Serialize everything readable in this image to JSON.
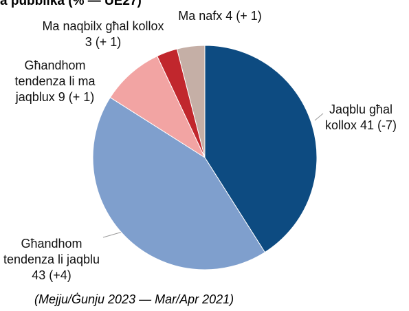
{
  "chart_data": {
    "type": "pie",
    "title": "a pubblika (% — UE27)",
    "subtitle": "(Mejju/Ġunju 2023 — Mar/Apr 2021)",
    "categories": [
      "Jaqblu għal kollox",
      "Għandhom tendenza li jaqblu",
      "Għandhom tendenza li ma jaqblux",
      "Ma naqbilx għal kollox",
      "Ma nafx"
    ],
    "values": [
      41,
      43,
      9,
      3,
      4
    ],
    "value_labels": [
      "41 (-7)",
      "43 (+4)",
      "9 (+ 1)",
      "3 (+ 1)",
      "4 (+ 1)"
    ],
    "colors": [
      "#0d4b81",
      "#7f9fcd",
      "#f2a4a3",
      "#c1272d",
      "#c5afa6"
    ]
  }
}
